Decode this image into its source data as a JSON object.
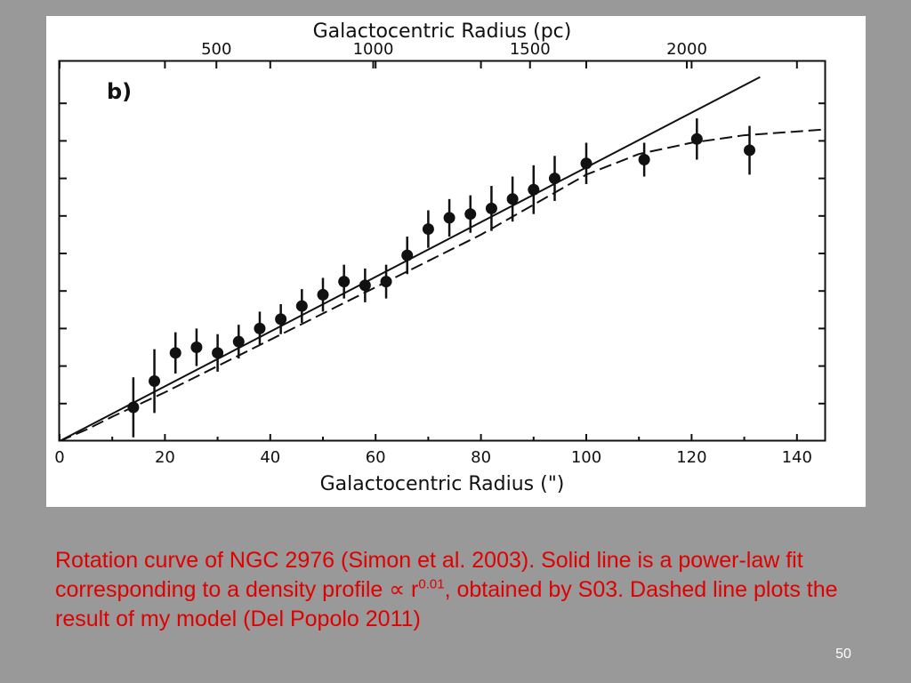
{
  "chart_data": {
    "type": "scatter",
    "panel_label": "b)",
    "xlabel": "Galactocentric Radius (\")",
    "x2label": "Galactocentric Radius (pc)",
    "xlim": [
      0,
      145
    ],
    "ylim": [
      0,
      100
    ],
    "x_ticks": [
      "0",
      "20",
      "40",
      "60",
      "80",
      "100",
      "120",
      "140"
    ],
    "x2_ticks": [
      "500",
      "1000",
      "1500",
      "2000"
    ],
    "x2_tick_positions": [
      500,
      1000,
      1500,
      2000
    ],
    "series": [
      {
        "kind": "points_with_errorbars",
        "x": [
          14,
          18,
          22,
          26,
          30,
          34,
          38,
          42,
          46,
          50,
          54,
          58,
          62,
          66,
          70,
          74,
          78,
          82,
          86,
          90,
          94,
          100,
          111,
          121,
          131
        ],
        "y": [
          9,
          16,
          23.5,
          25,
          23.5,
          26.5,
          30,
          32.5,
          36,
          39,
          42.5,
          41.5,
          42.5,
          49.5,
          56.5,
          59.5,
          60.5,
          62,
          64.5,
          67,
          70,
          74,
          75,
          80.5,
          77.5
        ],
        "err": [
          8,
          8.5,
          5.5,
          5,
          5,
          4.5,
          4.5,
          4,
          4.5,
          4.5,
          4.5,
          4.5,
          4.5,
          5,
          5,
          5,
          5,
          6,
          6,
          6.5,
          6,
          5.5,
          4.5,
          5.5,
          6.5
        ]
      },
      {
        "kind": "solid_line",
        "x": [
          0,
          133
        ],
        "y": [
          0,
          97
        ]
      },
      {
        "kind": "dashed_line",
        "x": [
          0,
          5,
          10,
          20,
          30,
          40,
          50,
          60,
          70,
          80,
          90,
          100,
          110,
          120,
          130,
          140,
          145
        ],
        "y": [
          0,
          3,
          6.5,
          13,
          20,
          27,
          34,
          41,
          48,
          55,
          63,
          71,
          76.5,
          79.5,
          81.5,
          82.5,
          83
        ]
      }
    ]
  },
  "caption": {
    "part1": "Rotation curve of  NGC 2976 (Simon et al. 2003). Solid line is a power-law fit corresponding to a density profile ∝ r",
    "exponent": "0.01",
    "part2": ", obtained by S03. Dashed line plots the result  of my model (Del Popolo 2011)"
  },
  "slide_number": "50",
  "colors": {
    "background": "#999999",
    "caption": "#e00000",
    "plot_ink": "#111111"
  }
}
